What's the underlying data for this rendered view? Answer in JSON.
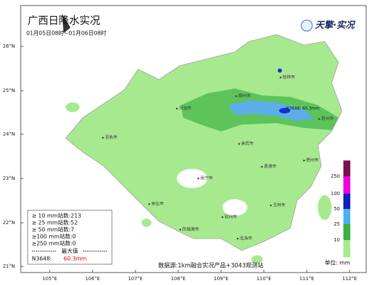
{
  "header": {
    "title": "广西日降水实况",
    "subtitle": "01月05日08时~01月06日08时",
    "logo": "天擎·实况"
  },
  "axes": {
    "lat": [
      "26°N",
      "25°N",
      "24°N",
      "23°N",
      "22°N",
      "21°N"
    ],
    "lon": [
      "105°E",
      "106°E",
      "107°E",
      "108°E",
      "109°E",
      "110°E",
      "111°E",
      "112°E"
    ]
  },
  "cities": [
    "桂林市",
    "柳州市",
    "河池市",
    "贺州市",
    "百色市",
    "来宾市",
    "贵港市",
    "梧州市",
    "南宁市",
    "崇左市",
    "玉林市",
    "钦州市",
    "防城港市",
    "北海市"
  ],
  "marker": "N3648: 60.3mm",
  "stats": {
    "rows": [
      "≥ 10 mm站数:213",
      "≥ 25 mm站数:52",
      "≥ 50 mm站数:7",
      "≥100 mm站数:0",
      "≥250 mm站数:0"
    ],
    "max_header": "最大值",
    "max_station": "N3648:",
    "max_value": "60.3mm"
  },
  "colorbar": {
    "labels": [
      "250",
      "100",
      "50",
      "25",
      "10"
    ],
    "unit": "单位: mm"
  },
  "source": "数据源:1km融合实况产品+3043观测站"
}
